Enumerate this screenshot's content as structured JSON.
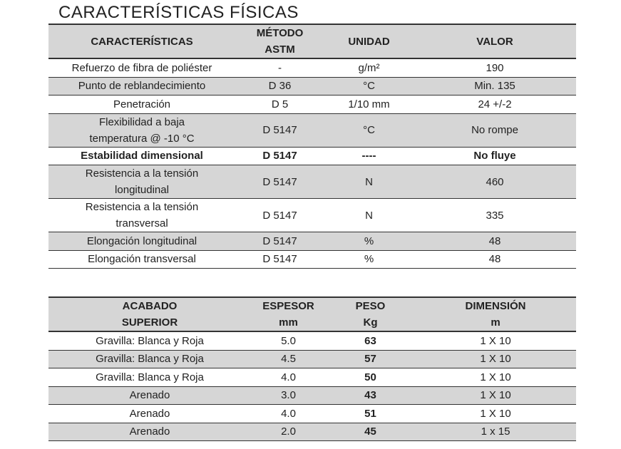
{
  "title": "CARACTERÍSTICAS FÍSICAS",
  "tables": [
    {
      "header": [
        [
          "CARACTERÍSTICAS"
        ],
        [
          "MÉTODO",
          "ASTM"
        ],
        [
          "UNIDAD"
        ],
        [
          "VALOR"
        ]
      ],
      "rows": [
        [
          "Refuerzo de fibra de poliéster",
          "-",
          "g/m²",
          "190"
        ],
        [
          "Punto de reblandecimiento",
          "D 36",
          "°C",
          "Min. 135"
        ],
        [
          "Penetración",
          "D 5",
          "1/10 mm",
          "24 +/-2"
        ],
        [
          "Flexibilidad a baja temperatura @ -10 °C",
          "D 5147",
          "°C",
          "No rompe"
        ],
        [
          "Estabilidad dimensional",
          "D 5147",
          "----",
          "No fluye"
        ],
        [
          "Resistencia a la tensión longitudinal",
          "D 5147",
          "N",
          "460"
        ],
        [
          "Resistencia a la tensión transversal",
          "D 5147",
          "N",
          "335"
        ],
        [
          "Elongación longitudinal",
          "D 5147",
          "%",
          "48"
        ],
        [
          "Elongación transversal",
          "D 5147",
          "%",
          "48"
        ]
      ]
    },
    {
      "header": [
        [
          "ACABADO",
          "SUPERIOR"
        ],
        [
          "ESPESOR",
          "mm"
        ],
        [
          "PESO",
          "Kg"
        ],
        [
          "DIMENSIÓN",
          "m"
        ]
      ],
      "rows": [
        [
          "Gravilla: Blanca y Roja",
          "5.0",
          "63",
          "1 X 10"
        ],
        [
          "Gravilla: Blanca y Roja",
          "4.5",
          "57",
          "1 X 10"
        ],
        [
          "Gravilla: Blanca y Roja",
          "4.0",
          "50",
          "1 X 10"
        ],
        [
          "Arenado",
          "3.0",
          "43",
          "1 X 10"
        ],
        [
          "Arenado",
          "4.0",
          "51",
          "1 X 10"
        ],
        [
          "Arenado",
          "2.0",
          "45",
          "1 x 15"
        ]
      ]
    }
  ]
}
